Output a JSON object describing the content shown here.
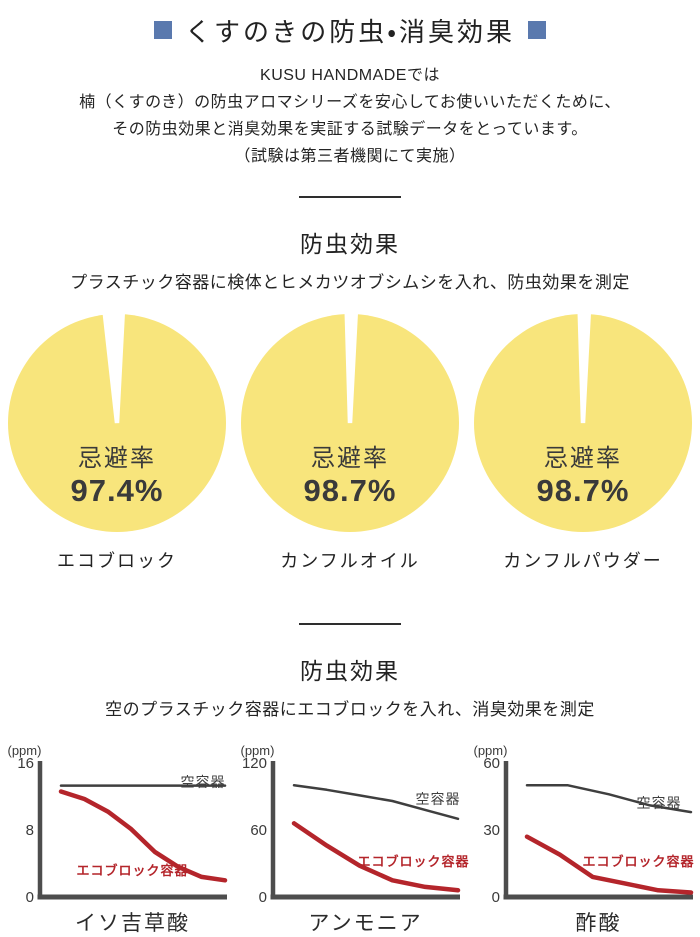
{
  "colors": {
    "accent_blue": "#5a79ae",
    "pie_yellow": "#f8e57c",
    "line_red": "#b4252b",
    "line_dark": "#3f3f3f",
    "axis_gray": "#4d4d4d",
    "text": "#2b2b2b"
  },
  "icons": {
    "title_bullet": "square"
  },
  "header": {
    "title": "くすのきの防虫・消臭効果"
  },
  "intro": {
    "lines": [
      "KUSU HANDMADEでは",
      "楠（くすのき）の防虫アロマシリーズを安心してお使いいただくために、",
      "その防虫効果と消臭効果を実証する試験データをとっています。",
      "（試験は第三者機関にて実施）"
    ]
  },
  "sections": [
    {
      "heading": "防虫効果",
      "subtitle": "プラスチック容器に検体とヒメカツオブシムシを入れ、防虫効果を測定"
    },
    {
      "heading": "防虫効果",
      "subtitle": "空のプラスチック容器にエコブロックを入れ、消臭効果を測定"
    }
  ],
  "chart_data": [
    {
      "type": "pie",
      "title": "エコブロック",
      "center_label": "忌避率",
      "value_label": "97.4%",
      "slices": [
        {
          "label": "忌避",
          "value": 97.4,
          "color": "#f8e57c"
        },
        {
          "label": "残り",
          "value": 2.6,
          "color": "#ffffff"
        }
      ]
    },
    {
      "type": "pie",
      "title": "カンフルオイル",
      "center_label": "忌避率",
      "value_label": "98.7%",
      "slices": [
        {
          "label": "忌避",
          "value": 98.7,
          "color": "#f8e57c"
        },
        {
          "label": "残り",
          "value": 1.3,
          "color": "#ffffff"
        }
      ]
    },
    {
      "type": "pie",
      "title": "カンフルパウダー",
      "center_label": "忌避率",
      "value_label": "98.7%",
      "slices": [
        {
          "label": "忌避",
          "value": 98.7,
          "color": "#f8e57c"
        },
        {
          "label": "残り",
          "value": 1.3,
          "color": "#ffffff"
        }
      ]
    },
    {
      "type": "line",
      "title": "イソ吉草酸",
      "ylabel": "(ppm)",
      "ylim": [
        0,
        16
      ],
      "yticks": [
        16,
        8,
        0
      ],
      "grid": false,
      "series": [
        {
          "name": "空容器",
          "color": "#3f3f3f",
          "values": [
            13.3,
            13.3
          ]
        },
        {
          "name": "エコブロック容器",
          "color": "#b4252b",
          "values": [
            12.6,
            11.7,
            10.2,
            8.1,
            5.4,
            3.6,
            2.4,
            2.0
          ]
        }
      ]
    },
    {
      "type": "line",
      "title": "アンモニア",
      "ylabel": "(ppm)",
      "ylim": [
        0,
        120
      ],
      "yticks": [
        120,
        60,
        0
      ],
      "grid": false,
      "series": [
        {
          "name": "空容器",
          "color": "#3f3f3f",
          "values": [
            100,
            96,
            91,
            86,
            78,
            70
          ]
        },
        {
          "name": "エコブロック容器",
          "color": "#b4252b",
          "values": [
            66,
            46,
            28,
            15,
            9,
            6
          ]
        }
      ]
    },
    {
      "type": "line",
      "title": "酢酸",
      "ylabel": "(ppm)",
      "ylim": [
        0,
        60
      ],
      "yticks": [
        60,
        30,
        0
      ],
      "grid": false,
      "series": [
        {
          "name": "空容器",
          "color": "#3f3f3f",
          "values": [
            50,
            50,
            46,
            41,
            38
          ]
        },
        {
          "name": "エコブロック容器",
          "color": "#b4252b",
          "values": [
            27,
            19,
            9,
            6,
            3,
            2
          ]
        }
      ]
    }
  ]
}
